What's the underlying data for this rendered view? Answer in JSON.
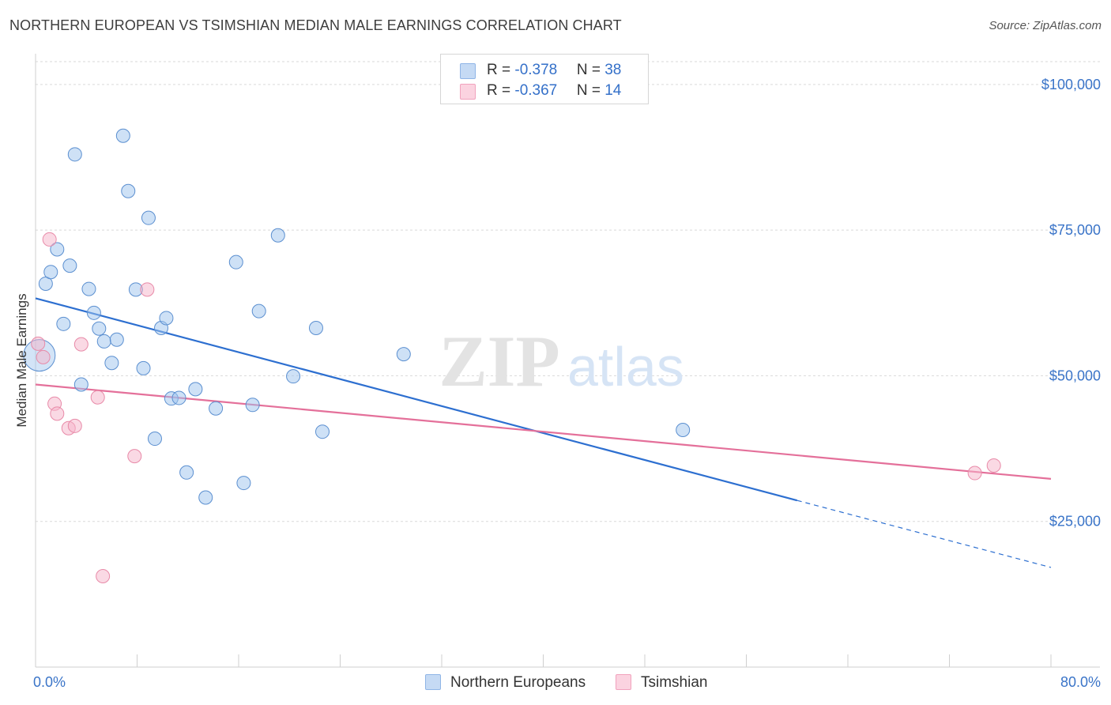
{
  "title": "NORTHERN EUROPEAN VS TSIMSHIAN MEDIAN MALE EARNINGS CORRELATION CHART",
  "source": "Source: ZipAtlas.com",
  "watermark": {
    "zip": "ZIP",
    "atlas": "atlas"
  },
  "legend": {
    "rows": [
      {
        "r_label": "R = ",
        "r_value": "-0.378",
        "n_label": "N = ",
        "n_value": "38",
        "color": "#9ec3ee"
      },
      {
        "r_label": "R = ",
        "r_value": "-0.367",
        "n_label": "N = ",
        "n_value": "14",
        "color": "#f6b4c9"
      }
    ]
  },
  "bottom_legend": [
    {
      "label": "Northern Europeans",
      "color": "#9ec3ee"
    },
    {
      "label": "Tsimshian",
      "color": "#f6b4c9"
    }
  ],
  "chart_data": {
    "type": "scatter",
    "title": "NORTHERN EUROPEAN VS TSIMSHIAN MEDIAN MALE EARNINGS CORRELATION CHART",
    "xlabel": "",
    "ylabel": "Median Male Earnings",
    "xlim": [
      0,
      80
    ],
    "ylim": [
      0,
      105000
    ],
    "x_tick_labels": [
      {
        "x": 0,
        "label": "0.0%"
      },
      {
        "x": 80,
        "label": "80.0%"
      }
    ],
    "y_ticks": [
      {
        "value": 25000,
        "label": "$25,000"
      },
      {
        "value": 50000,
        "label": "$50,000"
      },
      {
        "value": 75000,
        "label": "$75,000"
      },
      {
        "value": 100000,
        "label": "$100,000"
      }
    ],
    "grid": "horizontal-dashed",
    "legend_position": "top-center",
    "series": [
      {
        "name": "Northern Europeans",
        "color": "#9ec3ee",
        "stroke": "#5b8fd0",
        "points": [
          [
            0.3,
            53500
          ],
          [
            0.8,
            65800
          ],
          [
            1.2,
            67800
          ],
          [
            1.7,
            71700
          ],
          [
            2.2,
            58900
          ],
          [
            2.7,
            68900
          ],
          [
            3.1,
            88000
          ],
          [
            3.6,
            48500
          ],
          [
            4.2,
            64900
          ],
          [
            4.6,
            60800
          ],
          [
            5.0,
            58100
          ],
          [
            5.4,
            55900
          ],
          [
            6.0,
            52200
          ],
          [
            6.4,
            56200
          ],
          [
            6.9,
            91200
          ],
          [
            7.3,
            81700
          ],
          [
            7.9,
            64800
          ],
          [
            8.5,
            51300
          ],
          [
            8.9,
            77100
          ],
          [
            9.4,
            39200
          ],
          [
            9.9,
            58200
          ],
          [
            10.3,
            59900
          ],
          [
            10.7,
            46100
          ],
          [
            11.3,
            46200
          ],
          [
            11.9,
            33400
          ],
          [
            12.6,
            47700
          ],
          [
            13.4,
            29100
          ],
          [
            14.2,
            44400
          ],
          [
            15.8,
            69500
          ],
          [
            16.4,
            31600
          ],
          [
            17.1,
            45000
          ],
          [
            17.6,
            61100
          ],
          [
            19.1,
            74100
          ],
          [
            20.3,
            49900
          ],
          [
            22.1,
            58200
          ],
          [
            22.6,
            40400
          ],
          [
            29.0,
            53700
          ],
          [
            51.0,
            40700
          ]
        ],
        "trend": {
          "x0": 0,
          "y0": 63300,
          "x1": 60,
          "y1": 28600,
          "dashed_to_x": 80,
          "dashed_to_y": 17100
        }
      },
      {
        "name": "Tsimshian",
        "color": "#f6b4c9",
        "stroke": "#e88aa8",
        "points": [
          [
            0.2,
            55500
          ],
          [
            0.6,
            53200
          ],
          [
            1.1,
            73400
          ],
          [
            1.5,
            45200
          ],
          [
            1.7,
            43500
          ],
          [
            2.6,
            41000
          ],
          [
            3.1,
            41400
          ],
          [
            3.6,
            55400
          ],
          [
            4.9,
            46300
          ],
          [
            5.3,
            15600
          ],
          [
            7.8,
            36200
          ],
          [
            8.8,
            64800
          ],
          [
            74.0,
            33300
          ],
          [
            75.5,
            34600
          ]
        ],
        "trend": {
          "x0": 0,
          "y0": 48500,
          "x1": 80,
          "y1": 32300
        }
      }
    ]
  }
}
